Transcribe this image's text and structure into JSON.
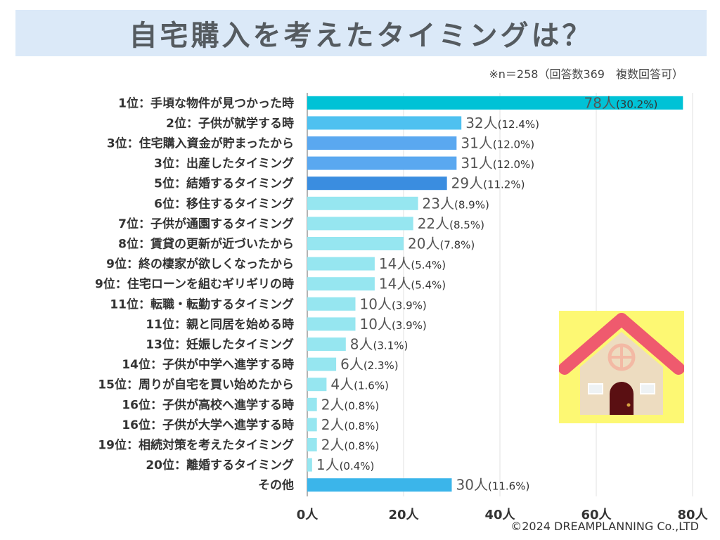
{
  "title": "自宅購入を考えたタイミングは？",
  "note": "※n＝258（回答数369　複数回答可）",
  "copyright": "©2024 DREAMPLANNING Co.,LTD",
  "colors": {
    "title_band": "#dbe9f8",
    "top": "#00c2d6",
    "blue_light": "#4ec1f0",
    "blue_mid": "#5aa8f0",
    "blue_dark": "#3a8de0",
    "cyan_light": "#96e6f0",
    "other": "#3bb5ea",
    "house_bg": "#fdf873",
    "roof": "#ef5a6e",
    "wall": "#eddcc0",
    "door": "#5a0f12"
  },
  "chart_data": {
    "type": "bar",
    "orientation": "horizontal",
    "unit": "人",
    "xlim": [
      0,
      80
    ],
    "ticks": [
      0,
      20,
      40,
      60,
      80
    ],
    "tick_labels": [
      "0人",
      "20人",
      "40人",
      "60人",
      "80人"
    ],
    "grid": true,
    "categories": [
      "1位：手頃な物件が見つかった時",
      "2位：子供が就学する時",
      "3位：住宅購入資金が貯まったから",
      "3位：出産したタイミング",
      "5位：結婚するタイミング",
      "6位：移住するタイミング",
      "7位：子供が通園するタイミング",
      "8位：賃貸の更新が近づいたから",
      "9位：終の棲家が欲しくなったから",
      "9位：住宅ローンを組むギリギリの時",
      "11位：転職・転勤するタイミング",
      "11位：親と同居を始める時",
      "13位：妊娠したタイミング",
      "14位：子供が中学へ進学する時",
      "15位：周りが自宅を買い始めたから",
      "16位：子供が高校へ進学する時",
      "16位：子供が大学へ進学する時",
      "19位：相続対策を考えたタイミング",
      "20位：離婚するタイミング",
      "その他"
    ],
    "values": [
      78,
      32,
      31,
      31,
      29,
      23,
      22,
      20,
      14,
      14,
      10,
      10,
      8,
      6,
      4,
      2,
      2,
      2,
      1,
      30
    ],
    "percent_labels": [
      "(30.2%)",
      "(12.4%)",
      "(12.0%)",
      "(12.0%)",
      "(11.2%)",
      "(8.9%)",
      "(8.5%)",
      "(7.8%)",
      "(5.4%)",
      "(5.4%)",
      "(3.9%)",
      "(3.9%)",
      "(3.1%)",
      "(2.3%)",
      "(1.6%)",
      "(0.8%)",
      "(0.8%)",
      "(0.8%)",
      "(0.4%)",
      "(11.6%)"
    ],
    "bar_colors": [
      "top",
      "blue_light",
      "blue_mid",
      "blue_mid",
      "blue_dark",
      "cyan_light",
      "cyan_light",
      "cyan_light",
      "cyan_light",
      "cyan_light",
      "cyan_light",
      "cyan_light",
      "cyan_light",
      "cyan_light",
      "cyan_light",
      "cyan_light",
      "cyan_light",
      "cyan_light",
      "cyan_light",
      "other"
    ]
  }
}
